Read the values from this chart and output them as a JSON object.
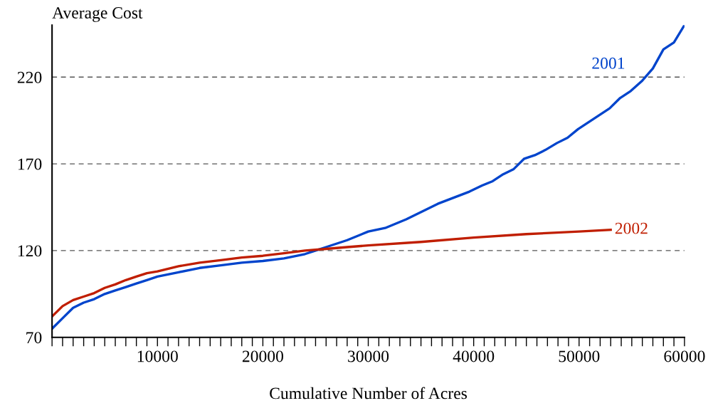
{
  "chart_data": {
    "type": "line",
    "ylabel": "Average Cost",
    "xlabel": "Cumulative Number of Acres",
    "xlim": [
      0,
      60000
    ],
    "ylim": [
      70,
      250
    ],
    "xticks": [
      {
        "value": 0,
        "label": null
      },
      {
        "value": 1000,
        "label": null
      },
      {
        "value": 2000,
        "label": null
      },
      {
        "value": 3000,
        "label": null
      },
      {
        "value": 4000,
        "label": null
      },
      {
        "value": 5000,
        "label": null
      },
      {
        "value": 6000,
        "label": null
      },
      {
        "value": 7000,
        "label": null
      },
      {
        "value": 8000,
        "label": null
      },
      {
        "value": 9000,
        "label": null
      },
      10000,
      {
        "value": 11000,
        "label": null
      },
      {
        "value": 12000,
        "label": null
      },
      {
        "value": 13000,
        "label": null
      },
      {
        "value": 14000,
        "label": null
      },
      {
        "value": 15000,
        "label": null
      },
      {
        "value": 16000,
        "label": null
      },
      {
        "value": 17000,
        "label": null
      },
      {
        "value": 18000,
        "label": null
      },
      {
        "value": 19000,
        "label": null
      },
      20000,
      {
        "value": 21000,
        "label": null
      },
      {
        "value": 22000,
        "label": null
      },
      {
        "value": 23000,
        "label": null
      },
      {
        "value": 24000,
        "label": null
      },
      {
        "value": 25000,
        "label": null
      },
      {
        "value": 26000,
        "label": null
      },
      {
        "value": 27000,
        "label": null
      },
      {
        "value": 28000,
        "label": null
      },
      {
        "value": 29000,
        "label": null
      },
      30000,
      {
        "value": 31000,
        "label": null
      },
      {
        "value": 32000,
        "label": null
      },
      {
        "value": 33000,
        "label": null
      },
      {
        "value": 34000,
        "label": null
      },
      {
        "value": 35000,
        "label": null
      },
      {
        "value": 36000,
        "label": null
      },
      {
        "value": 37000,
        "label": null
      },
      {
        "value": 38000,
        "label": null
      },
      {
        "value": 39000,
        "label": null
      },
      40000,
      {
        "value": 41000,
        "label": null
      },
      {
        "value": 42000,
        "label": null
      },
      {
        "value": 43000,
        "label": null
      },
      {
        "value": 44000,
        "label": null
      },
      {
        "value": 45000,
        "label": null
      },
      {
        "value": 46000,
        "label": null
      },
      {
        "value": 47000,
        "label": null
      },
      {
        "value": 48000,
        "label": null
      },
      {
        "value": 49000,
        "label": null
      },
      50000,
      {
        "value": 51000,
        "label": null
      },
      {
        "value": 52000,
        "label": null
      },
      {
        "value": 53000,
        "label": null
      },
      {
        "value": 54000,
        "label": null
      },
      {
        "value": 55000,
        "label": null
      },
      {
        "value": 56000,
        "label": null
      },
      {
        "value": 57000,
        "label": null
      },
      {
        "value": 58000,
        "label": null
      },
      {
        "value": 59000,
        "label": null
      },
      60000
    ],
    "yticks": [
      70,
      120,
      170,
      220
    ],
    "grid": "y",
    "legend": false,
    "line_style": "solid",
    "series": [
      {
        "name": "2001",
        "color": "#0044cc",
        "x": [
          0,
          1000,
          2000,
          3000,
          4000,
          5000,
          6000,
          7000,
          8000,
          9000,
          10000,
          12000,
          14000,
          16000,
          18000,
          20000,
          22000,
          24000,
          25000,
          26000,
          28000,
          30000,
          31600,
          33600,
          34600,
          36600,
          39600,
          40800,
          41800,
          42800,
          43800,
          44800,
          45800,
          46800,
          47900,
          48900,
          49900,
          50900,
          51900,
          52900,
          53900,
          54900,
          56000,
          57000,
          58000,
          59000,
          60000
        ],
        "values": [
          75,
          81,
          87,
          90,
          92,
          95,
          97,
          99,
          101,
          103,
          105,
          107.5,
          110,
          111.5,
          113,
          114,
          115.5,
          118,
          120,
          122,
          126,
          131,
          133,
          138,
          141,
          147,
          154,
          157.5,
          160,
          164,
          167,
          173,
          175,
          178,
          182,
          185,
          190,
          194,
          198,
          202,
          208,
          212,
          218,
          225,
          236,
          240,
          250
        ]
      },
      {
        "name": "2002",
        "color": "#c01e00",
        "x": [
          0,
          1000,
          2000,
          3000,
          4000,
          5000,
          6000,
          7000,
          8000,
          9000,
          10000,
          12000,
          14000,
          16000,
          18000,
          20000,
          22000,
          24000,
          26000,
          28000,
          30000,
          35000,
          40000,
          45000,
          50000,
          53000
        ],
        "values": [
          82,
          88,
          91.5,
          93.5,
          95.5,
          98.5,
          100.5,
          103,
          105,
          107,
          108,
          111,
          113,
          114.5,
          116,
          117,
          118.5,
          120,
          121,
          122,
          123,
          125,
          127.5,
          129.5,
          131,
          132
        ]
      }
    ]
  }
}
